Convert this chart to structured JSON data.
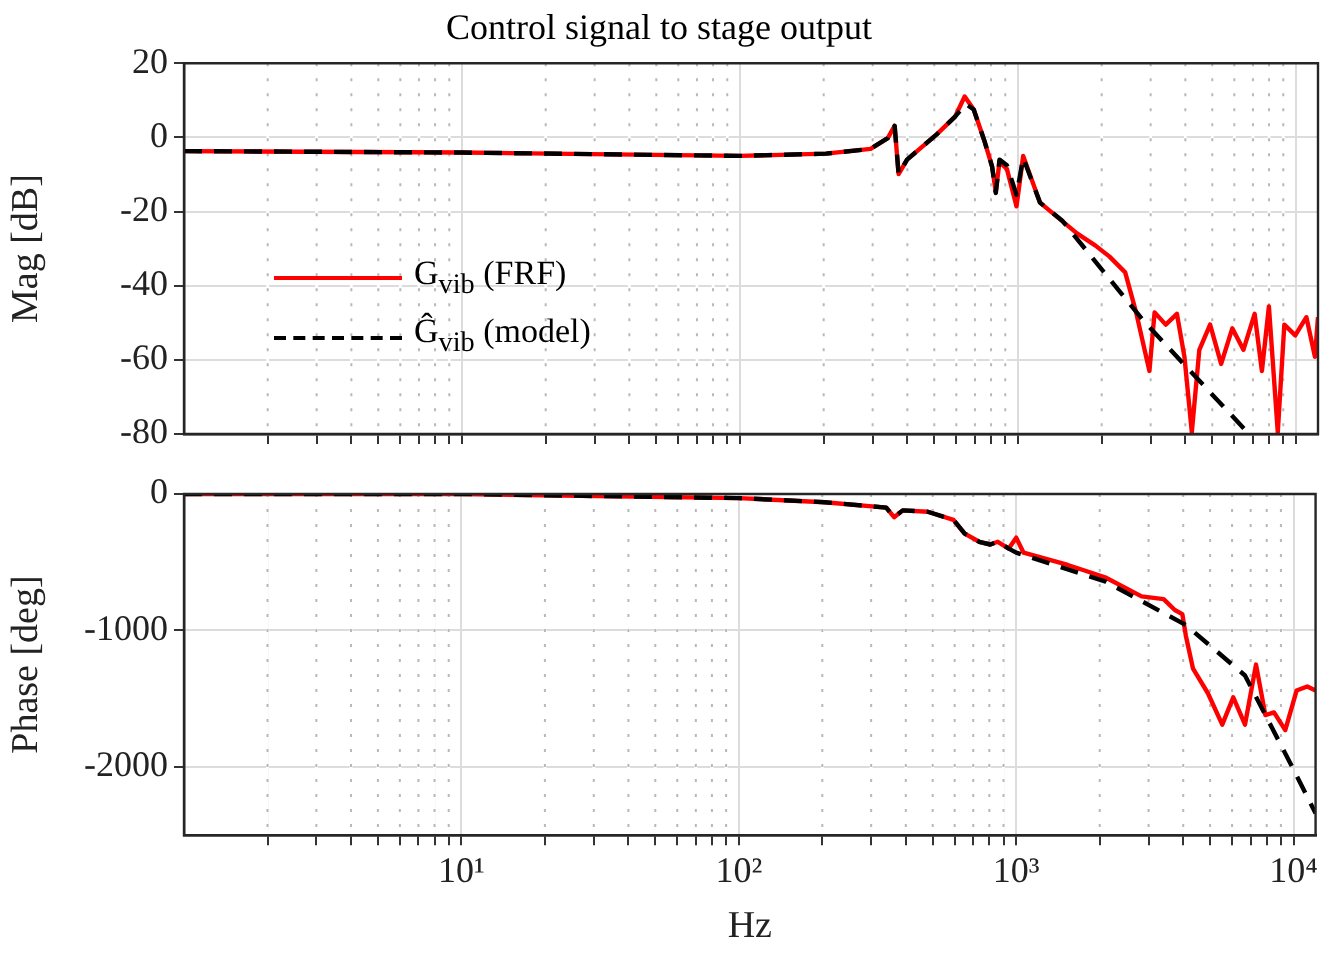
{
  "chart_data": [
    {
      "type": "line",
      "title": "Control signal to stage output",
      "ylabel": "Mag [dB]",
      "log": "x",
      "grid": true,
      "legend": "left",
      "tick_labels": "y",
      "xlim": [
        1,
        12000
      ],
      "xticks": [
        {
          "value": 2,
          "label": null
        },
        {
          "value": 3,
          "label": null
        },
        {
          "value": 4,
          "label": null
        },
        {
          "value": 5,
          "label": null
        },
        {
          "value": 6,
          "label": null
        },
        {
          "value": 7,
          "label": null
        },
        {
          "value": 8,
          "label": null
        },
        {
          "value": 9,
          "label": null
        },
        10,
        {
          "value": 20,
          "label": null
        },
        {
          "value": 30,
          "label": null
        },
        {
          "value": 40,
          "label": null
        },
        {
          "value": 50,
          "label": null
        },
        {
          "value": 60,
          "label": null
        },
        {
          "value": 70,
          "label": null
        },
        {
          "value": 80,
          "label": null
        },
        {
          "value": 90,
          "label": null
        },
        100,
        {
          "value": 200,
          "label": null
        },
        {
          "value": 300,
          "label": null
        },
        {
          "value": 400,
          "label": null
        },
        {
          "value": 500,
          "label": null
        },
        {
          "value": 600,
          "label": null
        },
        {
          "value": 700,
          "label": null
        },
        {
          "value": 800,
          "label": null
        },
        {
          "value": 900,
          "label": null
        },
        1000,
        {
          "value": 2000,
          "label": null
        },
        {
          "value": 3000,
          "label": null
        },
        {
          "value": 4000,
          "label": null
        },
        {
          "value": 5000,
          "label": null
        },
        {
          "value": 6000,
          "label": null
        },
        {
          "value": 7000,
          "label": null
        },
        {
          "value": 8000,
          "label": null
        },
        {
          "value": 9000,
          "label": null
        },
        10000
      ],
      "ylim": [
        -80,
        20
      ],
      "yticks": [
        -80,
        -60,
        -40,
        -20,
        0,
        20
      ],
      "series": [
        {
          "name": "G$_{vib}$ (FRF)",
          "color": "#ff0000",
          "line_style": "solid",
          "x": [
            1,
            10,
            100,
            204,
            295,
            340,
            360,
            372,
            399,
            510,
            594,
            643,
            693,
            759,
            807,
            832,
            858,
            912,
            988,
            1044,
            1200,
            1630,
            1900,
            2130,
            2430,
            2660,
            2970,
            3100,
            3400,
            3730,
            3970,
            4220,
            4490,
            4910,
            5380,
            5900,
            6470,
            7100,
            7540,
            7990,
            8600,
            9080,
            9940,
            10900,
            11700,
            12000
          ],
          "values": [
            -3.7,
            -4.1,
            -5,
            -4.4,
            -3.1,
            -0.2,
            3.1,
            -9.9,
            -6,
            0.8,
            5.6,
            11,
            7.5,
            -1.2,
            -7.9,
            -14.7,
            -6.6,
            -8.5,
            -18.6,
            -5,
            -17.6,
            -25.9,
            -29.2,
            -32.1,
            -36.4,
            -47.2,
            -63,
            -47.2,
            -50.5,
            -47.6,
            -59.2,
            -79.5,
            -57.3,
            -50.5,
            -61.1,
            -51.5,
            -57.3,
            -47.6,
            -63,
            -45.6,
            -79.5,
            -50.5,
            -53.4,
            -48.5,
            -59.2,
            -48.5
          ]
        },
        {
          "name": "Ĝ$_{vib}$ (model)",
          "color": "#000000",
          "line_style": "dashed",
          "x": [
            1,
            10,
            100,
            204,
            295,
            340,
            360,
            372,
            399,
            510,
            594,
            650,
            693,
            759,
            807,
            832,
            858,
            912,
            988,
            1044,
            1200,
            1440,
            2830,
            6680
          ],
          "values": [
            -3.7,
            -4.1,
            -5,
            -4.4,
            -3.1,
            -0.2,
            3.1,
            -9.9,
            -6,
            0.8,
            5.6,
            9,
            7.5,
            -1.2,
            -7.9,
            -15,
            -6,
            -7.5,
            -15.5,
            -5.5,
            -17.6,
            -22.4,
            -49.5,
            -79.5
          ]
        }
      ]
    },
    {
      "type": "line",
      "xlabel": "Hz",
      "ylabel": "Phase [deg]",
      "log": "x",
      "grid": true,
      "xlim": [
        1,
        12000
      ],
      "xticks": [
        {
          "value": 2,
          "label": null
        },
        {
          "value": 3,
          "label": null
        },
        {
          "value": 4,
          "label": null
        },
        {
          "value": 5,
          "label": null
        },
        {
          "value": 6,
          "label": null
        },
        {
          "value": 7,
          "label": null
        },
        {
          "value": 8,
          "label": null
        },
        {
          "value": 9,
          "label": null
        },
        {
          "value": 10,
          "label": "10¹"
        },
        {
          "value": 20,
          "label": null
        },
        {
          "value": 30,
          "label": null
        },
        {
          "value": 40,
          "label": null
        },
        {
          "value": 50,
          "label": null
        },
        {
          "value": 60,
          "label": null
        },
        {
          "value": 70,
          "label": null
        },
        {
          "value": 80,
          "label": null
        },
        {
          "value": 90,
          "label": null
        },
        {
          "value": 100,
          "label": "10²"
        },
        {
          "value": 200,
          "label": null
        },
        {
          "value": 300,
          "label": null
        },
        {
          "value": 400,
          "label": null
        },
        {
          "value": 500,
          "label": null
        },
        {
          "value": 600,
          "label": null
        },
        {
          "value": 700,
          "label": null
        },
        {
          "value": 800,
          "label": null
        },
        {
          "value": 900,
          "label": null
        },
        {
          "value": 1000,
          "label": "10³"
        },
        {
          "value": 2000,
          "label": null
        },
        {
          "value": 3000,
          "label": null
        },
        {
          "value": 4000,
          "label": null
        },
        {
          "value": 5000,
          "label": null
        },
        {
          "value": 6000,
          "label": null
        },
        {
          "value": 7000,
          "label": null
        },
        {
          "value": 8000,
          "label": null
        },
        {
          "value": 9000,
          "label": null
        },
        {
          "value": 10000,
          "label": "10⁴"
        }
      ],
      "ylim": [
        -2500,
        0
      ],
      "yticks": [
        -2000,
        -1000,
        0
      ],
      "series": [
        {
          "color": "#ff0000",
          "line_style": "solid",
          "x": [
            1,
            10,
            100,
            204,
            340,
            363,
            390,
            480,
            594,
            652,
            736,
            807,
            858,
            940,
            1000,
            1063,
            1535,
            2090,
            2830,
            3400,
            3730,
            3970,
            4090,
            4340,
            4910,
            5530,
            6060,
            6680,
            7320,
            7910,
            8500,
            9330,
            10250,
            11200,
            12000
          ],
          "values": [
            0,
            0,
            -30,
            -60,
            -100,
            -170,
            -120,
            -130,
            -190,
            -290,
            -350,
            -370,
            -350,
            -400,
            -320,
            -430,
            -520,
            -610,
            -750,
            -770,
            -850,
            -880,
            -1040,
            -1280,
            -1460,
            -1690,
            -1490,
            -1690,
            -1250,
            -1620,
            -1600,
            -1730,
            -1440,
            -1410,
            -1440
          ]
        },
        {
          "color": "#000000",
          "line_style": "dashed",
          "x": [
            1,
            10,
            100,
            204,
            340,
            363,
            390,
            480,
            594,
            652,
            736,
            807,
            858,
            940,
            1000,
            2090,
            4090,
            6680,
            10000,
            12000
          ],
          "values": [
            0,
            0,
            -30,
            -60,
            -100,
            -170,
            -120,
            -130,
            -190,
            -290,
            -350,
            -370,
            -350,
            -400,
            -430,
            -640,
            -960,
            -1330,
            -2020,
            -2340
          ]
        }
      ]
    }
  ]
}
